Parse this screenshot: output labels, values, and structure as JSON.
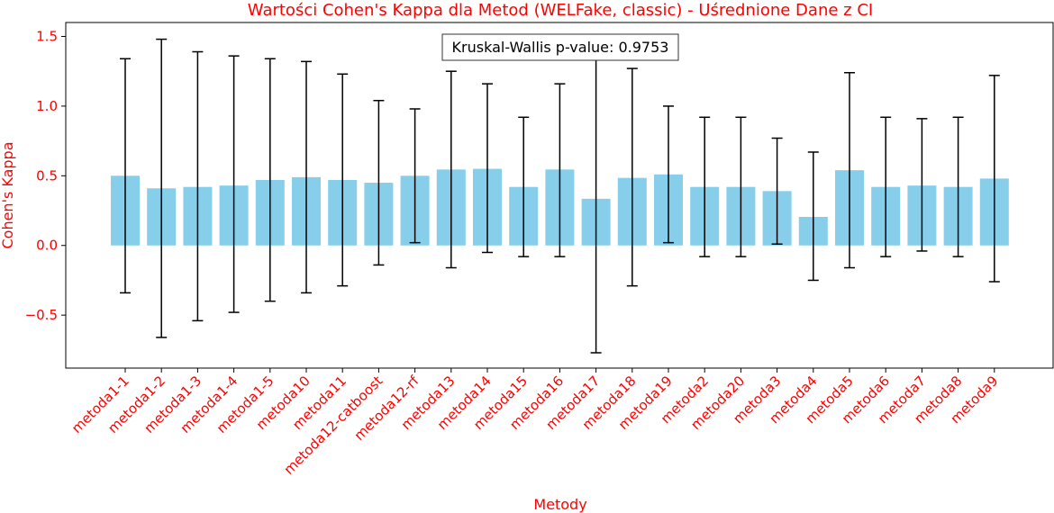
{
  "chart_data": {
    "type": "bar",
    "title": "Wartości Cohen's Kappa dla Metod (WELFake, classic) - Uśrednione Dane z CI",
    "xlabel": "Metody",
    "ylabel": "Cohen's Kappa",
    "ylim": [
      -0.88,
      1.6
    ],
    "yticks": [
      "−0.5",
      "0.0",
      "0.5",
      "1.0",
      "1.5"
    ],
    "ytick_values": [
      -0.5,
      0,
      0.5,
      1.0,
      1.5
    ],
    "annotation": "Kruskal-Wallis p-value: 0.9753",
    "bar_color": "#87ceeb",
    "text_color": "#ff0000",
    "categories": [
      "metoda1-1",
      "metoda1-2",
      "metoda1-3",
      "metoda1-4",
      "metoda1-5",
      "metoda10",
      "metoda11",
      "metoda12-catboost",
      "metoda12-rf",
      "metoda13",
      "metoda14",
      "metoda15",
      "metoda16",
      "metoda17",
      "metoda18",
      "metoda19",
      "metoda2",
      "metoda20",
      "metoda3",
      "metoda4",
      "metoda5",
      "metoda6",
      "metoda7",
      "metoda8",
      "metoda9"
    ],
    "values": [
      0.5,
      0.41,
      0.42,
      0.43,
      0.47,
      0.49,
      0.47,
      0.45,
      0.5,
      0.545,
      0.55,
      0.42,
      0.545,
      0.335,
      0.485,
      0.51,
      0.42,
      0.42,
      0.39,
      0.205,
      0.54,
      0.42,
      0.43,
      0.42,
      0.48
    ],
    "ci_low": [
      -0.34,
      -0.66,
      -0.54,
      -0.48,
      -0.4,
      -0.34,
      -0.29,
      -0.14,
      0.02,
      -0.16,
      -0.05,
      -0.08,
      -0.08,
      -0.77,
      -0.29,
      0.02,
      -0.08,
      -0.08,
      0.01,
      -0.25,
      -0.16,
      -0.08,
      -0.04,
      -0.08,
      -0.26
    ],
    "ci_high": [
      1.34,
      1.48,
      1.39,
      1.36,
      1.34,
      1.32,
      1.23,
      1.04,
      0.98,
      1.25,
      1.16,
      0.92,
      1.16,
      1.42,
      1.27,
      1.0,
      0.92,
      0.92,
      0.77,
      0.67,
      1.24,
      0.92,
      0.91,
      0.92,
      1.22
    ],
    "grid": false
  }
}
